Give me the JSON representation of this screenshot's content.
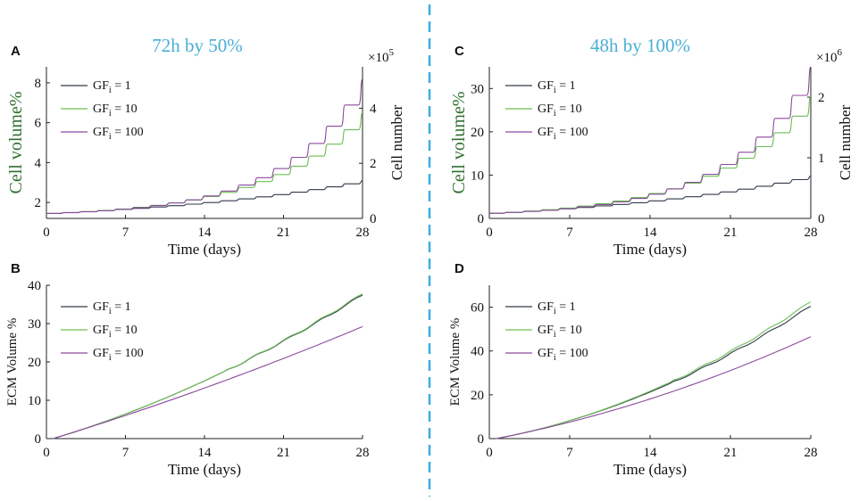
{
  "colors": {
    "gf1": "#303a4a",
    "gf10": "#6cbf55",
    "gf100": "#8c4a9e",
    "title": "#4aaed6",
    "divider": "#3aaee0",
    "ylabel_green": "#2f6f2f"
  },
  "legend": {
    "labels": [
      {
        "pre": "GF",
        "sub": "i",
        "post": " = 1"
      },
      {
        "pre": "GF",
        "sub": "i",
        "post": " = 10"
      },
      {
        "pre": "GF",
        "sub": "i",
        "post": " = 100"
      }
    ]
  },
  "chart_data": [
    {
      "panel": "A",
      "type": "line",
      "title": "72h by 50%",
      "xlabel": "Time (days)",
      "ylabel": "Cell volume%",
      "ylabel_right": "Cell number",
      "right_multiplier": {
        "base": "×10",
        "exp": "5"
      },
      "xlim": [
        0,
        28
      ],
      "ylim": [
        1.2,
        8.8
      ],
      "yticks": [
        2,
        4,
        6,
        8
      ],
      "ylim_right": [
        0,
        5.5
      ],
      "yticks_right": [
        0,
        2,
        4
      ],
      "xticks": [
        0,
        7,
        14,
        21,
        28
      ],
      "steps": [
        {
          "series": "GF_i = 1",
          "start": 1.45,
          "end": 3.1
        },
        {
          "series": "GF_i = 10",
          "start": 1.45,
          "end": 6.5
        },
        {
          "series": "GF_i = 100",
          "start": 1.45,
          "end": 8.2
        }
      ]
    },
    {
      "panel": "B",
      "type": "line",
      "xlabel": "Time (days)",
      "ylabel": "ECM Volume %",
      "xlim": [
        0,
        28
      ],
      "ylim": [
        0,
        40
      ],
      "yticks": [
        0,
        10,
        20,
        30,
        40
      ],
      "xticks": [
        0,
        7,
        14,
        21,
        28
      ],
      "curves": [
        {
          "series": "GF_i = 1",
          "end": 37.5,
          "curv": 0.35
        },
        {
          "series": "GF_i = 10",
          "end": 37.8,
          "curv": 0.36
        },
        {
          "series": "GF_i = 100",
          "end": 29.2,
          "curv": 0.15
        }
      ]
    },
    {
      "panel": "C",
      "type": "line",
      "title": "48h by 100%",
      "xlabel": "Time (days)",
      "ylabel": "Cell volume%",
      "ylabel_right": "Cell number",
      "right_multiplier": {
        "base": "×10",
        "exp": "6"
      },
      "xlim": [
        0,
        28
      ],
      "ylim": [
        0,
        35
      ],
      "yticks": [
        0,
        10,
        20,
        30
      ],
      "ylim_right": [
        0,
        2.5
      ],
      "yticks_right": [
        0,
        1,
        2
      ],
      "xticks": [
        0,
        7,
        14,
        21,
        28
      ],
      "steps": [
        {
          "series": "GF_i = 1",
          "start": 1.2,
          "end": 9.8
        },
        {
          "series": "GF_i = 10",
          "start": 1.2,
          "end": 28.2
        },
        {
          "series": "GF_i = 100",
          "start": 1.2,
          "end": 35.0
        }
      ]
    },
    {
      "panel": "D",
      "type": "line",
      "xlabel": "Time (days)",
      "ylabel": "ECM Volume %",
      "xlim": [
        0,
        28
      ],
      "ylim": [
        0,
        70
      ],
      "yticks": [
        0,
        20,
        40,
        60
      ],
      "xticks": [
        0,
        7,
        14,
        21,
        28
      ],
      "curves": [
        {
          "series": "GF_i = 1",
          "end": 60.5,
          "curv": 0.55
        },
        {
          "series": "GF_i = 10",
          "end": 62.5,
          "curv": 0.57
        },
        {
          "series": "GF_i = 100",
          "end": 46.5,
          "curv": 0.4
        }
      ]
    }
  ]
}
